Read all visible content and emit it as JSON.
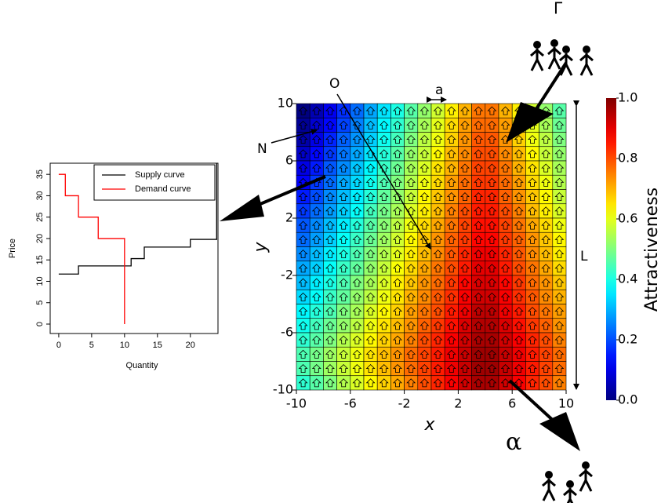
{
  "chart_data": [
    {
      "type": "line",
      "x_label": "Quantity",
      "y_label": "Price",
      "xlim": [
        -1.3,
        24.2
      ],
      "ylim": [
        -2.2,
        37.6
      ],
      "xticks": [
        0,
        5,
        10,
        15,
        20
      ],
      "yticks": [
        0,
        5,
        10,
        15,
        20,
        25,
        30,
        35
      ],
      "legend": "top-right",
      "series": [
        {
          "name": "Supply curve",
          "color": "#000000",
          "x": [
            0,
            3,
            3,
            11,
            11,
            13,
            13,
            20,
            20,
            24,
            24
          ],
          "values": [
            11.7,
            11.7,
            13.6,
            13.6,
            15.3,
            15.3,
            18,
            18,
            19.8,
            19.8,
            37.6
          ]
        },
        {
          "name": "Demand curve",
          "color": "#ff0000",
          "x": [
            0,
            1,
            1,
            3,
            3,
            6,
            6,
            10,
            10
          ],
          "values": [
            35,
            35,
            30,
            30,
            25,
            25,
            20,
            20,
            0
          ]
        }
      ]
    },
    {
      "type": "heatmap",
      "x_label": "x",
      "y_label": "y",
      "xlim": [
        -10,
        10
      ],
      "ylim": [
        -10,
        10
      ],
      "xticks": [
        -10,
        -6,
        -2,
        2,
        6,
        10
      ],
      "yticks": [
        -10,
        -6,
        -2,
        2,
        6,
        10
      ],
      "colorbar": {
        "label": "Attractiveness",
        "lim": [
          0,
          1
        ],
        "ticks": [
          {
            "value": 0,
            "label": "0.0"
          },
          0.2,
          0.4,
          0.6,
          0.8,
          {
            "value": 1,
            "label": "1.0"
          }
        ]
      },
      "values": [
        [
          0,
          0.05,
          0.11,
          0.17,
          0.23,
          0.29,
          0.35,
          0.4,
          0.46,
          0.52,
          0.58,
          0.64,
          0.7,
          0.76,
          0.76,
          0.7,
          0.64,
          0.58,
          0.52,
          0.46
        ],
        [
          0.02,
          0.08,
          0.13,
          0.19,
          0.25,
          0.31,
          0.37,
          0.42,
          0.48,
          0.54,
          0.6,
          0.66,
          0.72,
          0.77,
          0.77,
          0.72,
          0.66,
          0.6,
          0.54,
          0.48
        ],
        [
          0.04,
          0.1,
          0.16,
          0.22,
          0.27,
          0.33,
          0.39,
          0.44,
          0.5,
          0.56,
          0.61,
          0.67,
          0.73,
          0.79,
          0.79,
          0.73,
          0.67,
          0.61,
          0.56,
          0.5
        ],
        [
          0.07,
          0.13,
          0.18,
          0.24,
          0.29,
          0.35,
          0.41,
          0.46,
          0.52,
          0.57,
          0.63,
          0.69,
          0.74,
          0.8,
          0.8,
          0.74,
          0.69,
          0.63,
          0.57,
          0.52
        ],
        [
          0.1,
          0.15,
          0.21,
          0.26,
          0.32,
          0.37,
          0.43,
          0.48,
          0.54,
          0.59,
          0.65,
          0.7,
          0.76,
          0.81,
          0.81,
          0.76,
          0.7,
          0.65,
          0.59,
          0.54
        ],
        [
          0.12,
          0.18,
          0.23,
          0.29,
          0.34,
          0.39,
          0.45,
          0.5,
          0.55,
          0.61,
          0.66,
          0.72,
          0.77,
          0.82,
          0.82,
          0.77,
          0.72,
          0.66,
          0.61,
          0.55
        ],
        [
          0.15,
          0.2,
          0.26,
          0.31,
          0.36,
          0.41,
          0.47,
          0.52,
          0.57,
          0.63,
          0.68,
          0.73,
          0.78,
          0.84,
          0.84,
          0.78,
          0.73,
          0.68,
          0.63,
          0.57
        ],
        [
          0.18,
          0.23,
          0.28,
          0.33,
          0.38,
          0.44,
          0.49,
          0.54,
          0.59,
          0.64,
          0.69,
          0.75,
          0.8,
          0.85,
          0.85,
          0.8,
          0.75,
          0.69,
          0.64,
          0.59
        ],
        [
          0.21,
          0.26,
          0.31,
          0.36,
          0.41,
          0.46,
          0.51,
          0.56,
          0.61,
          0.66,
          0.71,
          0.76,
          0.81,
          0.86,
          0.86,
          0.81,
          0.76,
          0.71,
          0.66,
          0.61
        ],
        [
          0.23,
          0.28,
          0.33,
          0.38,
          0.43,
          0.48,
          0.53,
          0.58,
          0.63,
          0.68,
          0.73,
          0.78,
          0.82,
          0.87,
          0.87,
          0.82,
          0.78,
          0.73,
          0.68,
          0.63
        ],
        [
          0.26,
          0.31,
          0.36,
          0.4,
          0.45,
          0.5,
          0.55,
          0.6,
          0.64,
          0.69,
          0.74,
          0.79,
          0.84,
          0.89,
          0.89,
          0.84,
          0.79,
          0.74,
          0.69,
          0.64
        ],
        [
          0.29,
          0.33,
          0.38,
          0.43,
          0.47,
          0.52,
          0.57,
          0.62,
          0.66,
          0.71,
          0.76,
          0.8,
          0.85,
          0.9,
          0.9,
          0.85,
          0.8,
          0.76,
          0.71,
          0.66
        ],
        [
          0.31,
          0.36,
          0.4,
          0.45,
          0.5,
          0.54,
          0.59,
          0.64,
          0.68,
          0.73,
          0.77,
          0.82,
          0.87,
          0.91,
          0.91,
          0.87,
          0.82,
          0.77,
          0.73,
          0.68
        ],
        [
          0.34,
          0.38,
          0.43,
          0.47,
          0.52,
          0.56,
          0.61,
          0.65,
          0.7,
          0.74,
          0.79,
          0.83,
          0.88,
          0.92,
          0.92,
          0.88,
          0.83,
          0.79,
          0.74,
          0.7
        ],
        [
          0.37,
          0.41,
          0.45,
          0.5,
          0.54,
          0.59,
          0.63,
          0.67,
          0.72,
          0.76,
          0.8,
          0.85,
          0.89,
          0.94,
          0.94,
          0.89,
          0.85,
          0.8,
          0.76,
          0.72
        ],
        [
          0.39,
          0.44,
          0.48,
          0.52,
          0.56,
          0.61,
          0.65,
          0.69,
          0.73,
          0.78,
          0.82,
          0.86,
          0.91,
          0.95,
          0.95,
          0.91,
          0.86,
          0.82,
          0.78,
          0.73
        ],
        [
          0.42,
          0.46,
          0.5,
          0.55,
          0.59,
          0.63,
          0.67,
          0.71,
          0.75,
          0.8,
          0.84,
          0.88,
          0.92,
          0.96,
          0.96,
          0.92,
          0.88,
          0.84,
          0.8,
          0.75
        ],
        [
          0.45,
          0.49,
          0.53,
          0.57,
          0.61,
          0.65,
          0.69,
          0.73,
          0.77,
          0.81,
          0.85,
          0.89,
          0.93,
          0.97,
          0.97,
          0.93,
          0.89,
          0.85,
          0.81,
          0.77
        ],
        [
          0.45,
          0.49,
          0.53,
          0.57,
          0.61,
          0.65,
          0.69,
          0.73,
          0.77,
          0.81,
          0.85,
          0.89,
          0.93,
          0.97,
          0.97,
          0.93,
          0.89,
          0.85,
          0.81,
          0.77
        ],
        [
          0.42,
          0.46,
          0.5,
          0.55,
          0.59,
          0.63,
          0.67,
          0.71,
          0.75,
          0.8,
          0.84,
          0.88,
          0.92,
          0.96,
          0.96,
          0.92,
          0.88,
          0.84,
          0.8,
          0.75
        ]
      ]
    }
  ],
  "annotations": {
    "origin": "O",
    "neighbor": "N",
    "cell_size": "a",
    "length": "L",
    "inflow": "Γ",
    "outflow": "α"
  }
}
